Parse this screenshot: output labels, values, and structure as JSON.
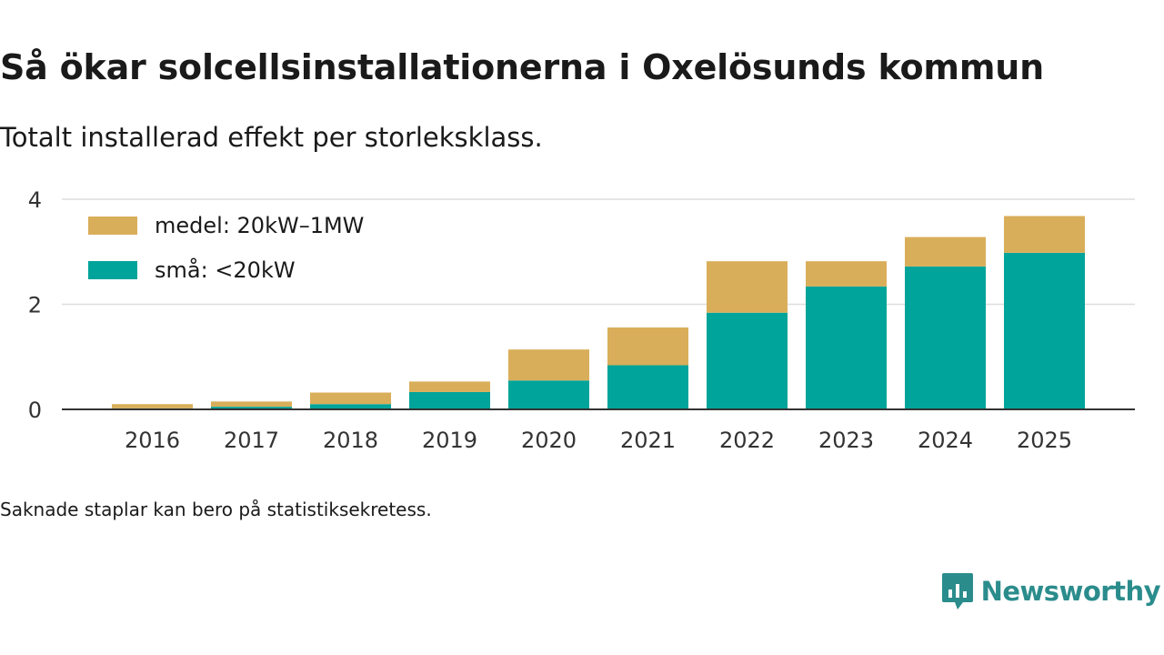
{
  "title": "Så ökar solcellsinstallationerna i Oxelösunds kommun",
  "subtitle": "Totalt installerad effekt per storleksklass.",
  "footnote": "Saknade staplar kan bero på statistiksekretess.",
  "brand": "Newsworthy",
  "colors": {
    "medel": "#d9ae5a",
    "sma": "#00a49a",
    "grid": "#dddddd",
    "axis": "#333333",
    "brand": "#2b8c8c"
  },
  "chart_data": {
    "type": "bar",
    "stacked": true,
    "categories": [
      "2016",
      "2017",
      "2018",
      "2019",
      "2020",
      "2021",
      "2022",
      "2023",
      "2024",
      "2025"
    ],
    "series": [
      {
        "name": "små: <20kW",
        "key": "sma",
        "values": [
          0.02,
          0.05,
          0.1,
          0.33,
          0.55,
          0.84,
          1.84,
          2.34,
          2.72,
          2.98
        ]
      },
      {
        "name": "medel: 20kW–1MW",
        "key": "medel",
        "values": [
          0.08,
          0.1,
          0.22,
          0.2,
          0.59,
          0.72,
          0.98,
          0.48,
          0.56,
          0.7
        ]
      }
    ],
    "yticks": [
      0,
      2,
      4
    ],
    "ylim": [
      0,
      4
    ],
    "grid": true,
    "legend": "top-left",
    "title": "Så ökar solcellsinstallationerna i Oxelösunds kommun",
    "xlabel": "",
    "ylabel": ""
  }
}
